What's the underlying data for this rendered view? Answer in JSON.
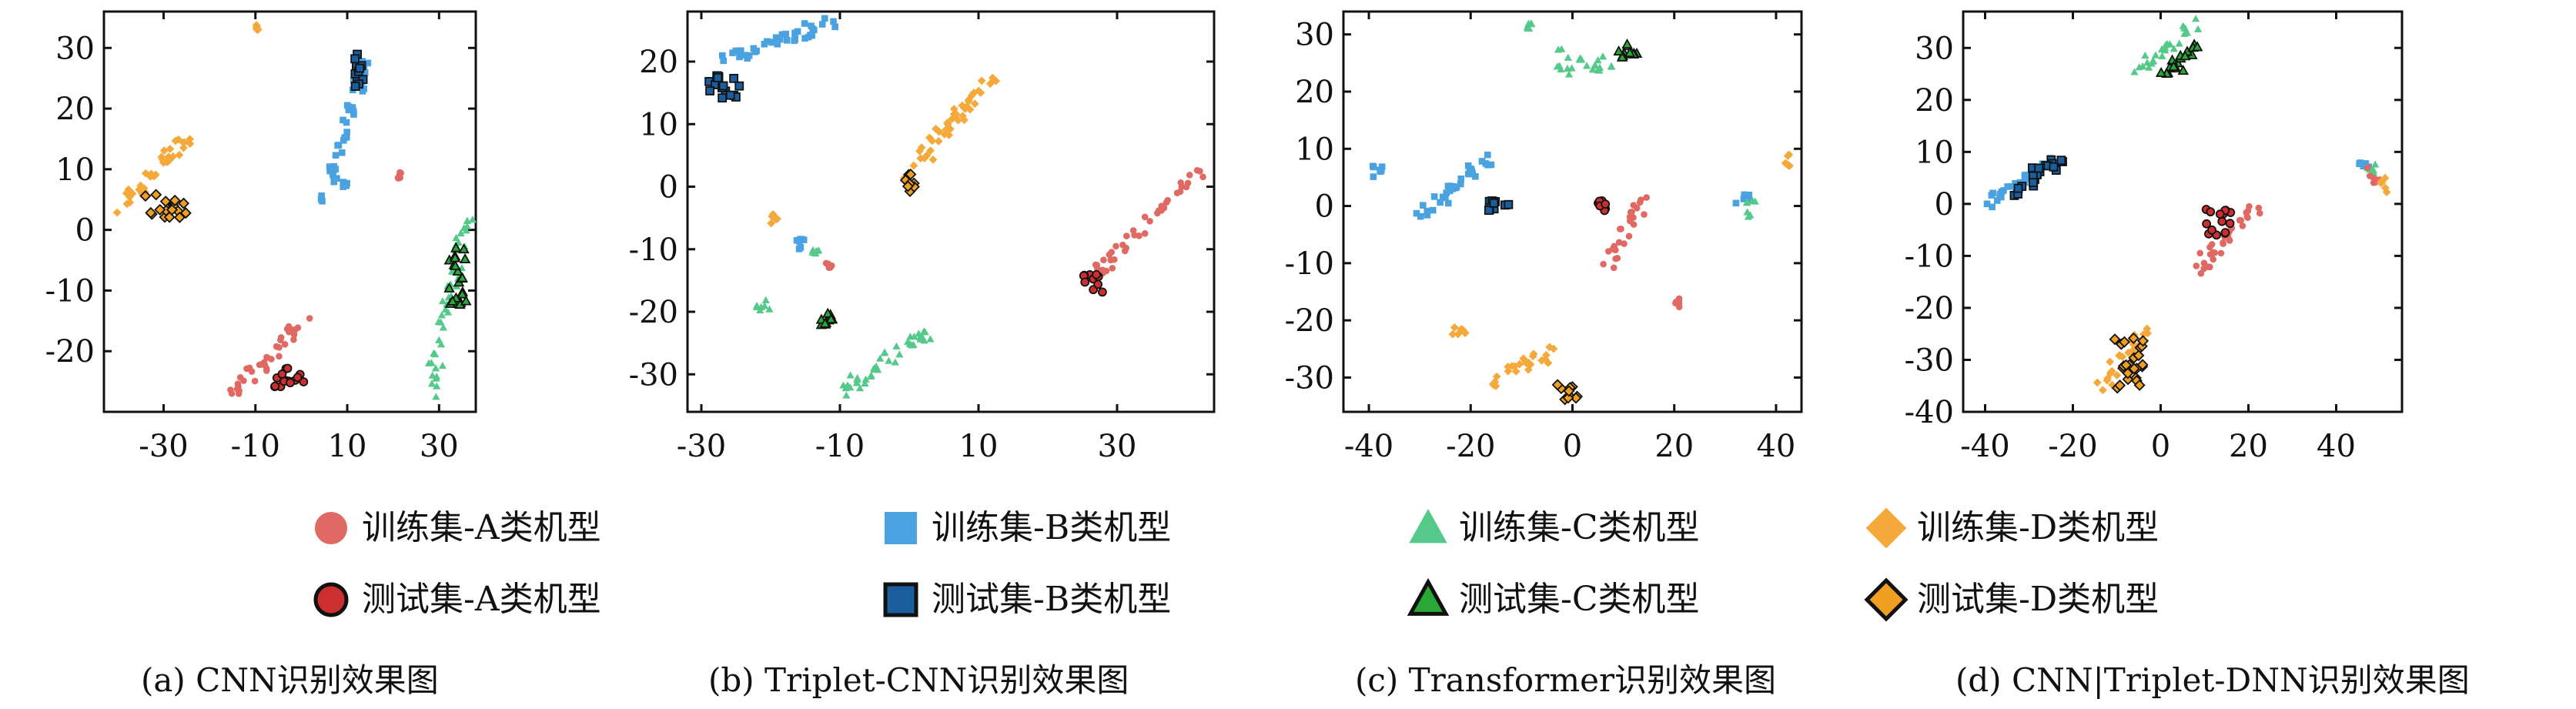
{
  "colors": {
    "A_train": "#e06a63",
    "A_test": "#cc2f2f",
    "B_train": "#4aa3e0",
    "B_test": "#1b5e9e",
    "C_train": "#55c98a",
    "C_test": "#2aa836",
    "D_train": "#f5a93a",
    "D_test": "#f0a020",
    "edge_test": "#111111"
  },
  "legend": {
    "items": [
      {
        "label": "训练集-A类机型",
        "marker": "circle",
        "set": "train",
        "cls": "A"
      },
      {
        "label": "训练集-B类机型",
        "marker": "square",
        "set": "train",
        "cls": "B"
      },
      {
        "label": "训练集-C类机型",
        "marker": "triangle",
        "set": "train",
        "cls": "C"
      },
      {
        "label": "训练集-D类机型",
        "marker": "diamond",
        "set": "train",
        "cls": "D"
      },
      {
        "label": "测试集-A类机型",
        "marker": "circle",
        "set": "test",
        "cls": "A"
      },
      {
        "label": "测试集-B类机型",
        "marker": "square",
        "set": "test",
        "cls": "B"
      },
      {
        "label": "测试集-C类机型",
        "marker": "triangle",
        "set": "test",
        "cls": "C"
      },
      {
        "label": "测试集-D类机型",
        "marker": "diamond",
        "set": "test",
        "cls": "D"
      }
    ]
  },
  "chart_data": [
    {
      "type": "scatter",
      "title": "(a) CNN识别效果图",
      "xlim": [
        -43,
        38
      ],
      "ylim": [
        -30,
        36
      ],
      "xticks": [
        -30,
        -10,
        10,
        30
      ],
      "yticks": [
        -20,
        -10,
        0,
        10,
        20,
        30
      ],
      "clusters": [
        {
          "cls": "B",
          "set": "train",
          "x": [
            5,
            14
          ],
          "y": [
            5,
            28
          ]
        },
        {
          "cls": "B",
          "set": "test",
          "x": [
            11.5,
            13.5
          ],
          "y": [
            23,
            29
          ]
        },
        {
          "cls": "B",
          "set": "train",
          "x": [
            9,
            10
          ],
          "y": [
            7,
            8
          ]
        },
        {
          "cls": "D",
          "set": "train",
          "x": [
            -10,
            -9
          ],
          "y": [
            33,
            34
          ]
        },
        {
          "cls": "D",
          "set": "train",
          "x": [
            -40,
            -25
          ],
          "y": [
            3,
            15
          ]
        },
        {
          "cls": "D",
          "set": "test",
          "x": [
            -34,
            -25
          ],
          "y": [
            2,
            6
          ]
        },
        {
          "cls": "A",
          "set": "train",
          "x": [
            21,
            22
          ],
          "y": [
            8.5,
            9.5
          ]
        },
        {
          "cls": "A",
          "set": "train",
          "x": [
            -15,
            1
          ],
          "y": [
            -27,
            -15
          ]
        },
        {
          "cls": "A",
          "set": "test",
          "x": [
            -6,
            1
          ],
          "y": [
            -26,
            -22
          ]
        },
        {
          "cls": "C",
          "set": "train",
          "x": [
            28,
            36
          ],
          "y": [
            -27,
            3
          ]
        },
        {
          "cls": "C",
          "set": "test",
          "x": [
            32,
            36
          ],
          "y": [
            -13,
            -2
          ]
        }
      ]
    },
    {
      "type": "scatter",
      "title": "(b) Triplet-CNN识别效果图",
      "xlim": [
        -32,
        44
      ],
      "ylim": [
        -36,
        28
      ],
      "xticks": [
        -30,
        -10,
        10,
        30
      ],
      "yticks": [
        -30,
        -20,
        -10,
        0,
        10,
        20
      ],
      "clusters": [
        {
          "cls": "B",
          "set": "train",
          "x": [
            -26,
            -10
          ],
          "y": [
            20,
            27
          ]
        },
        {
          "cls": "B",
          "set": "test",
          "x": [
            -29,
            -24
          ],
          "y": [
            14,
            18
          ]
        },
        {
          "cls": "B",
          "set": "train",
          "x": [
            -17,
            -15
          ],
          "y": [
            -10,
            -8
          ]
        },
        {
          "cls": "D",
          "set": "train",
          "x": [
            0,
            12
          ],
          "y": [
            2,
            18
          ]
        },
        {
          "cls": "D",
          "set": "test",
          "x": [
            -1,
            1
          ],
          "y": [
            -1,
            2
          ]
        },
        {
          "cls": "D",
          "set": "train",
          "x": [
            -20,
            -19
          ],
          "y": [
            -6,
            -4
          ]
        },
        {
          "cls": "A",
          "set": "train",
          "x": [
            26,
            42
          ],
          "y": [
            -15,
            3
          ]
        },
        {
          "cls": "A",
          "set": "test",
          "x": [
            25,
            28
          ],
          "y": [
            -17,
            -14
          ]
        },
        {
          "cls": "A",
          "set": "train",
          "x": [
            -12,
            -11
          ],
          "y": [
            -13,
            -12
          ]
        },
        {
          "cls": "C",
          "set": "train",
          "x": [
            -14,
            -13
          ],
          "y": [
            -11,
            -10
          ]
        },
        {
          "cls": "C",
          "set": "train",
          "x": [
            -22,
            -20
          ],
          "y": [
            -20,
            -18
          ]
        },
        {
          "cls": "C",
          "set": "train",
          "x": [
            -10,
            3
          ],
          "y": [
            -33,
            -23
          ]
        },
        {
          "cls": "C",
          "set": "test",
          "x": [
            -13,
            -10
          ],
          "y": [
            -23,
            -20
          ]
        }
      ]
    },
    {
      "type": "scatter",
      "title": "(c) Transformer识别效果图",
      "xlim": [
        -45,
        45
      ],
      "ylim": [
        -36,
        34
      ],
      "xticks": [
        -40,
        -20,
        0,
        20,
        40
      ],
      "yticks": [
        -30,
        -20,
        -10,
        0,
        10,
        20,
        30
      ],
      "clusters": [
        {
          "cls": "C",
          "set": "train",
          "x": [
            -9,
            -8
          ],
          "y": [
            31,
            32
          ]
        },
        {
          "cls": "C",
          "set": "train",
          "x": [
            -3,
            9
          ],
          "y": [
            23,
            28
          ]
        },
        {
          "cls": "C",
          "set": "test",
          "x": [
            9,
            13
          ],
          "y": [
            26,
            29
          ]
        },
        {
          "cls": "B",
          "set": "train",
          "x": [
            -40,
            -37
          ],
          "y": [
            5,
            7
          ]
        },
        {
          "cls": "B",
          "set": "train",
          "x": [
            -30,
            -16
          ],
          "y": [
            -2,
            9
          ]
        },
        {
          "cls": "B",
          "set": "test",
          "x": [
            -17,
            -12
          ],
          "y": [
            -1,
            1
          ]
        },
        {
          "cls": "B",
          "set": "train",
          "x": [
            32,
            35
          ],
          "y": [
            0,
            2
          ]
        },
        {
          "cls": "C",
          "set": "train",
          "x": [
            34,
            36
          ],
          "y": [
            -2,
            1
          ]
        },
        {
          "cls": "D",
          "set": "train",
          "x": [
            41,
            43
          ],
          "y": [
            7,
            9
          ]
        },
        {
          "cls": "A",
          "set": "train",
          "x": [
            7,
            14
          ],
          "y": [
            -10,
            1
          ]
        },
        {
          "cls": "A",
          "set": "test",
          "x": [
            5,
            7
          ],
          "y": [
            -1,
            2
          ]
        },
        {
          "cls": "A",
          "set": "train",
          "x": [
            20,
            21
          ],
          "y": [
            -18,
            -16
          ]
        },
        {
          "cls": "D",
          "set": "train",
          "x": [
            -24,
            -21
          ],
          "y": [
            -23,
            -21
          ]
        },
        {
          "cls": "D",
          "set": "train",
          "x": [
            -16,
            -3
          ],
          "y": [
            -31,
            -25
          ]
        },
        {
          "cls": "D",
          "set": "test",
          "x": [
            -3,
            1
          ],
          "y": [
            -34,
            -31
          ]
        }
      ]
    },
    {
      "type": "scatter",
      "title": "(d) CNN|Triplet-DNN识别效果图",
      "xlim": [
        -45,
        55
      ],
      "ylim": [
        -40,
        37
      ],
      "xticks": [
        -40,
        -20,
        0,
        20,
        40
      ],
      "yticks": [
        -40,
        -30,
        -20,
        -10,
        0,
        10,
        20,
        30
      ],
      "clusters": [
        {
          "cls": "C",
          "set": "train",
          "x": [
            -5,
            8
          ],
          "y": [
            26,
            35
          ]
        },
        {
          "cls": "C",
          "set": "test",
          "x": [
            0,
            8
          ],
          "y": [
            24,
            30
          ]
        },
        {
          "cls": "B",
          "set": "train",
          "x": [
            -39,
            -24
          ],
          "y": [
            0,
            9
          ]
        },
        {
          "cls": "B",
          "set": "test",
          "x": [
            -33,
            -23
          ],
          "y": [
            2,
            9
          ]
        },
        {
          "cls": "B",
          "set": "train",
          "x": [
            45,
            48
          ],
          "y": [
            7,
            9
          ]
        },
        {
          "cls": "C",
          "set": "train",
          "x": [
            47,
            49
          ],
          "y": [
            6,
            8
          ]
        },
        {
          "cls": "A",
          "set": "train",
          "x": [
            47,
            50
          ],
          "y": [
            4,
            7
          ]
        },
        {
          "cls": "D",
          "set": "train",
          "x": [
            50,
            52
          ],
          "y": [
            2,
            5
          ]
        },
        {
          "cls": "A",
          "set": "train",
          "x": [
            8,
            22
          ],
          "y": [
            -13,
            0
          ]
        },
        {
          "cls": "A",
          "set": "test",
          "x": [
            10,
            16
          ],
          "y": [
            -7,
            -1
          ]
        },
        {
          "cls": "D",
          "set": "train",
          "x": [
            -14,
            -3
          ],
          "y": [
            -35,
            -24
          ]
        },
        {
          "cls": "D",
          "set": "test",
          "x": [
            -11,
            -4
          ],
          "y": [
            -37,
            -25
          ]
        }
      ]
    }
  ]
}
